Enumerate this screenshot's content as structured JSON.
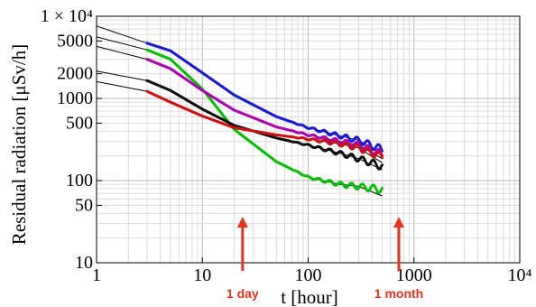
{
  "chart_data": {
    "type": "scatter",
    "xlabel": "t [hour]",
    "ylabel": "Residual radiation [μSv/h]",
    "xscale": "log",
    "yscale": "log",
    "xlim": [
      1,
      10000
    ],
    "ylim": [
      10,
      10000
    ],
    "grid": true,
    "x_ticks": [
      {
        "value": 1,
        "label": "1"
      },
      {
        "value": 10,
        "label": "10"
      },
      {
        "value": 100,
        "label": "100"
      },
      {
        "value": 1000,
        "label": "1000"
      },
      {
        "value": 10000,
        "label": "10⁴"
      }
    ],
    "y_ticks": [
      {
        "value": 10,
        "label": "10"
      },
      {
        "value": 50,
        "label": "50"
      },
      {
        "value": 100,
        "label": "100"
      },
      {
        "value": 500,
        "label": "500"
      },
      {
        "value": 1000,
        "label": "1000"
      },
      {
        "value": 2000,
        "label": "2000"
      },
      {
        "value": 5000,
        "label": "5000"
      },
      {
        "value": 10000,
        "label": "1 × 10⁴"
      }
    ],
    "series": [
      {
        "color": "#1a1ad6",
        "x": [
          3,
          5,
          10,
          20,
          50,
          100,
          200,
          300,
          500
        ],
        "y": [
          4700,
          3800,
          2050,
          1100,
          600,
          440,
          350,
          310,
          240
        ]
      },
      {
        "color": "#00c000",
        "x": [
          3,
          5,
          10,
          20,
          50,
          100,
          200,
          300,
          500
        ],
        "y": [
          3900,
          3000,
          1300,
          420,
          170,
          110,
          90,
          85,
          78
        ]
      },
      {
        "color": "#b000b0",
        "x": [
          3,
          5,
          10,
          20,
          50,
          100,
          200,
          300,
          500
        ],
        "y": [
          3000,
          2300,
          1250,
          720,
          450,
          360,
          300,
          270,
          210
        ]
      },
      {
        "color": "#111111",
        "x": [
          3,
          5,
          10,
          20,
          50,
          100,
          200,
          300,
          500
        ],
        "y": [
          1650,
          1250,
          740,
          470,
          330,
          270,
          215,
          185,
          150
        ]
      },
      {
        "color": "#d01010",
        "x": [
          3,
          5,
          10,
          20,
          50,
          100,
          200,
          300,
          500
        ],
        "y": [
          1220,
          900,
          610,
          440,
          360,
          320,
          280,
          250,
          195
        ]
      }
    ],
    "fit_curves": [
      {
        "color": "#000000",
        "x": [
          1,
          3,
          5,
          10,
          20,
          50,
          100,
          200,
          300,
          500
        ],
        "y": [
          7600,
          4700,
          3800,
          2050,
          1100,
          600,
          440,
          350,
          310,
          210
        ]
      },
      {
        "color": "#000000",
        "x": [
          1,
          3,
          5,
          10,
          20,
          50,
          100,
          200,
          300,
          500
        ],
        "y": [
          5600,
          3900,
          3000,
          1300,
          420,
          170,
          110,
          90,
          85,
          65
        ]
      },
      {
        "color": "#000000",
        "x": [
          1,
          3,
          5,
          10,
          20,
          50,
          100,
          200,
          300,
          500
        ],
        "y": [
          4300,
          3000,
          2300,
          1250,
          720,
          450,
          360,
          300,
          270,
          185
        ]
      },
      {
        "color": "#000000",
        "x": [
          1,
          3,
          5,
          10,
          20,
          50,
          100,
          200,
          300,
          500
        ],
        "y": [
          2150,
          1650,
          1250,
          740,
          470,
          330,
          270,
          215,
          185,
          135
        ]
      },
      {
        "color": "#000000",
        "x": [
          1,
          3,
          5,
          10,
          20,
          50,
          100,
          200,
          300,
          500
        ],
        "y": [
          1600,
          1220,
          900,
          610,
          440,
          360,
          320,
          280,
          250,
          165
        ]
      }
    ],
    "annotations": [
      {
        "text": "1 day",
        "x": 24,
        "color": "#e8321e"
      },
      {
        "text": "1 month",
        "x": 720,
        "color": "#e8321e"
      }
    ]
  }
}
